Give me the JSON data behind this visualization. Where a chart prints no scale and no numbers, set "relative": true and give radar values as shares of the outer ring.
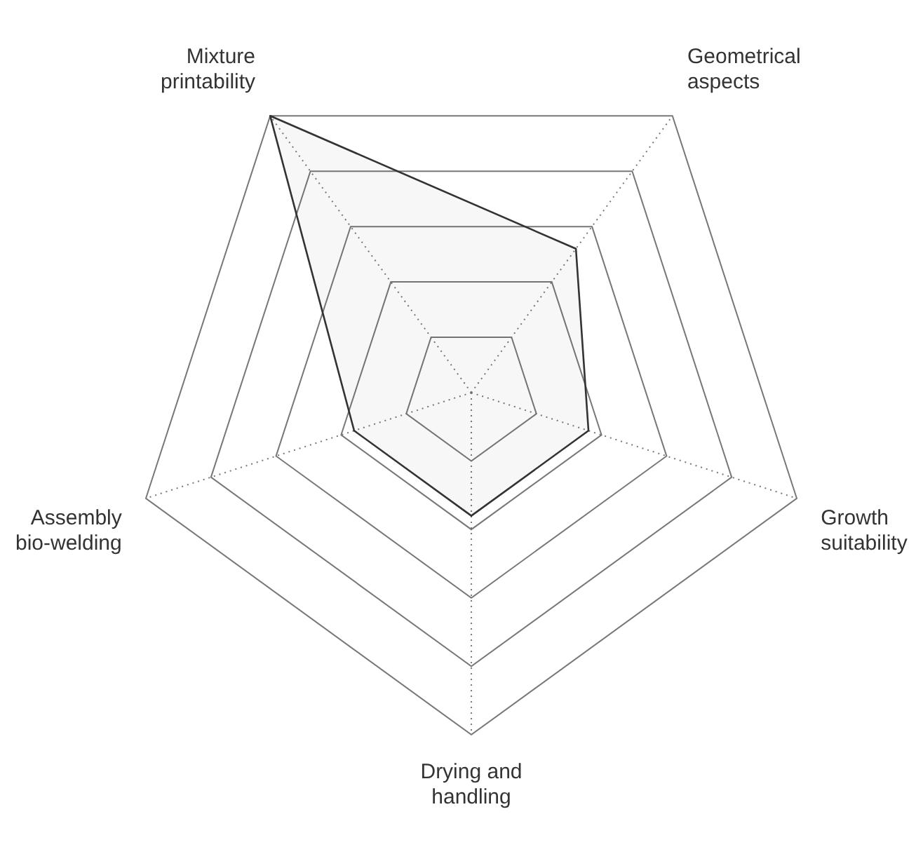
{
  "chart_data": {
    "type": "radar",
    "relative": true,
    "categories": [
      "Geometrical aspects",
      "Growth suitability",
      "Drying and handling",
      "Assembly bio-welding",
      "Mixture printability"
    ],
    "series": [
      {
        "color": "#333333",
        "values": [
          0.52,
          0.36,
          0.36,
          0.36,
          1
        ]
      }
    ],
    "grid": true,
    "legend": false,
    "marker": "none",
    "line_style": "solid"
  }
}
